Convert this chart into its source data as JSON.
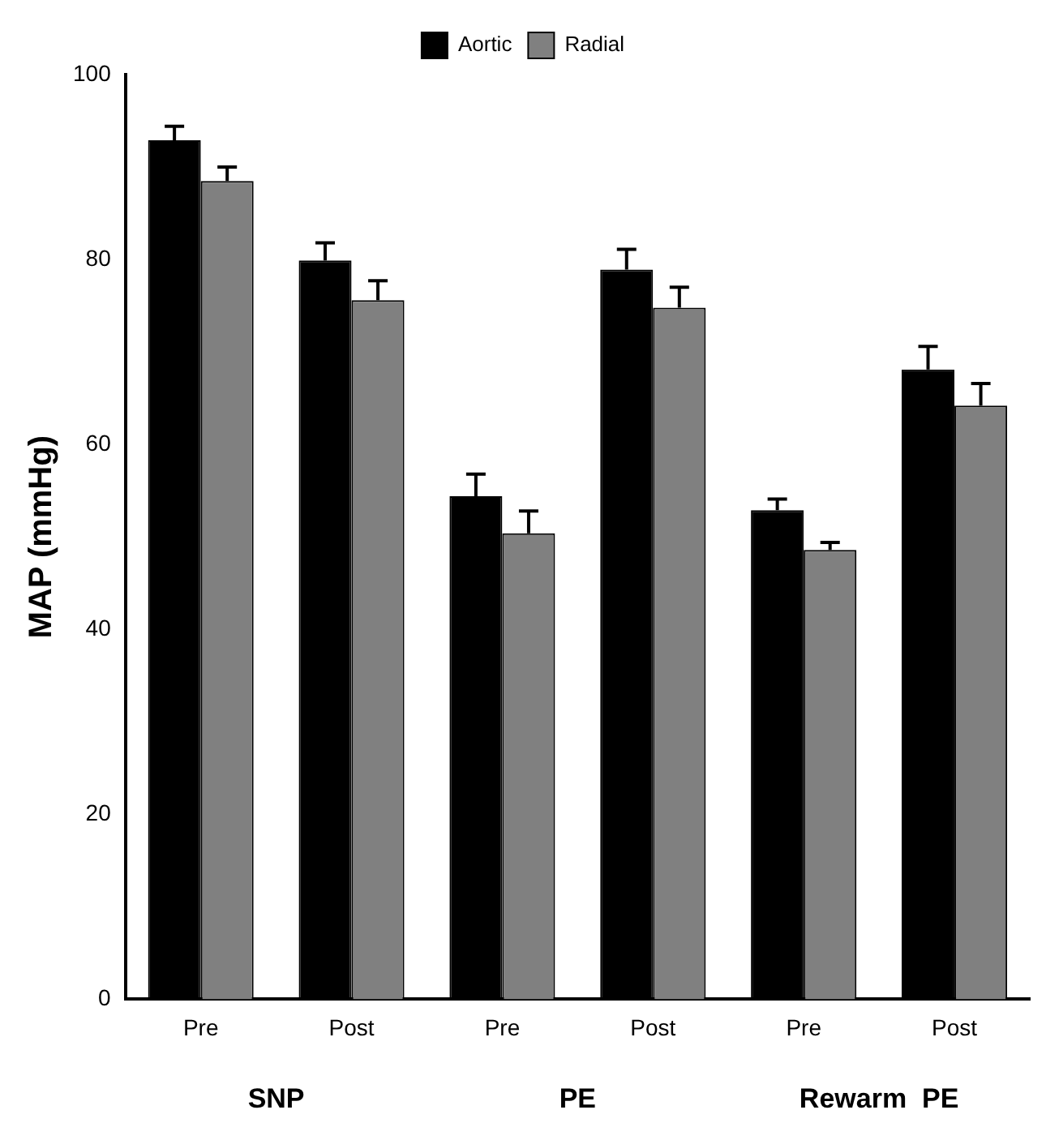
{
  "chart_data": {
    "type": "bar",
    "ylabel": "MAP (mmHg)",
    "categories": [
      "Pre",
      "Post",
      "Pre",
      "Post",
      "Pre",
      "Post"
    ],
    "series": [
      {
        "name": "Aortic",
        "color": "#000000",
        "values": [
          92.9,
          79.9,
          54.4,
          78.9,
          52.9,
          68.1
        ],
        "errors": [
          [
            92.9,
            94.4
          ],
          [
            79.9,
            81.8
          ],
          [
            54.4,
            56.8
          ],
          [
            78.9,
            81.1
          ],
          [
            52.9,
            54.1
          ],
          [
            68.1,
            70.6
          ]
        ]
      },
      {
        "name": "Radial",
        "color": "#808080",
        "values": [
          88.5,
          75.6,
          50.4,
          74.8,
          48.6,
          64.2
        ],
        "errors": [
          [
            88.5,
            90.0
          ],
          [
            75.6,
            77.7
          ],
          [
            50.4,
            52.8
          ],
          [
            74.8,
            77.0
          ],
          [
            48.6,
            49.4
          ],
          [
            64.2,
            66.6
          ]
        ]
      }
    ],
    "annotations": [
      "SNP",
      "PE",
      "Rewarm  PE"
    ],
    "ylim": [
      0,
      100
    ],
    "yticks": [
      0,
      20,
      40,
      60,
      80,
      100
    ],
    "grid": false,
    "legend": "top"
  }
}
